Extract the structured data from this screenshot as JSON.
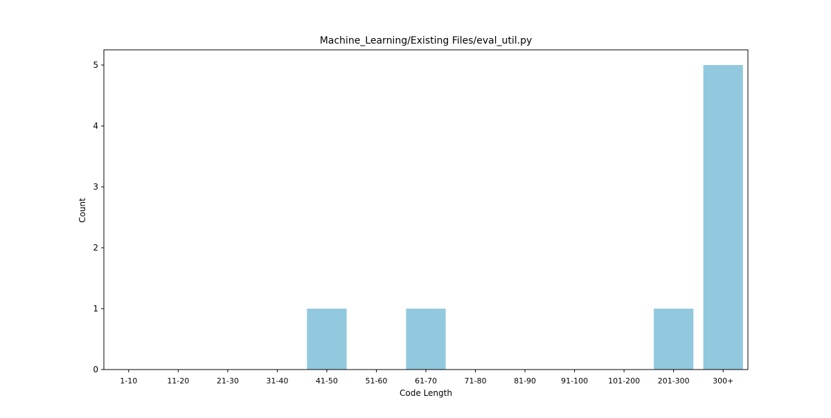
{
  "chart_data": {
    "type": "bar",
    "title": "Machine_Learning/Existing Files/eval_util.py",
    "xlabel": "Code Length",
    "ylabel": "Count",
    "categories": [
      "1-10",
      "11-20",
      "21-30",
      "31-40",
      "41-50",
      "51-60",
      "61-70",
      "71-80",
      "81-90",
      "91-100",
      "101-200",
      "201-300",
      "300+"
    ],
    "values": [
      0,
      0,
      0,
      0,
      1,
      0,
      1,
      0,
      0,
      0,
      0,
      1,
      5
    ],
    "ylim": [
      0,
      5.25
    ],
    "yticks": [
      0,
      1,
      2,
      3,
      4,
      5
    ],
    "grid": false,
    "bar_color": "#92c9de"
  }
}
